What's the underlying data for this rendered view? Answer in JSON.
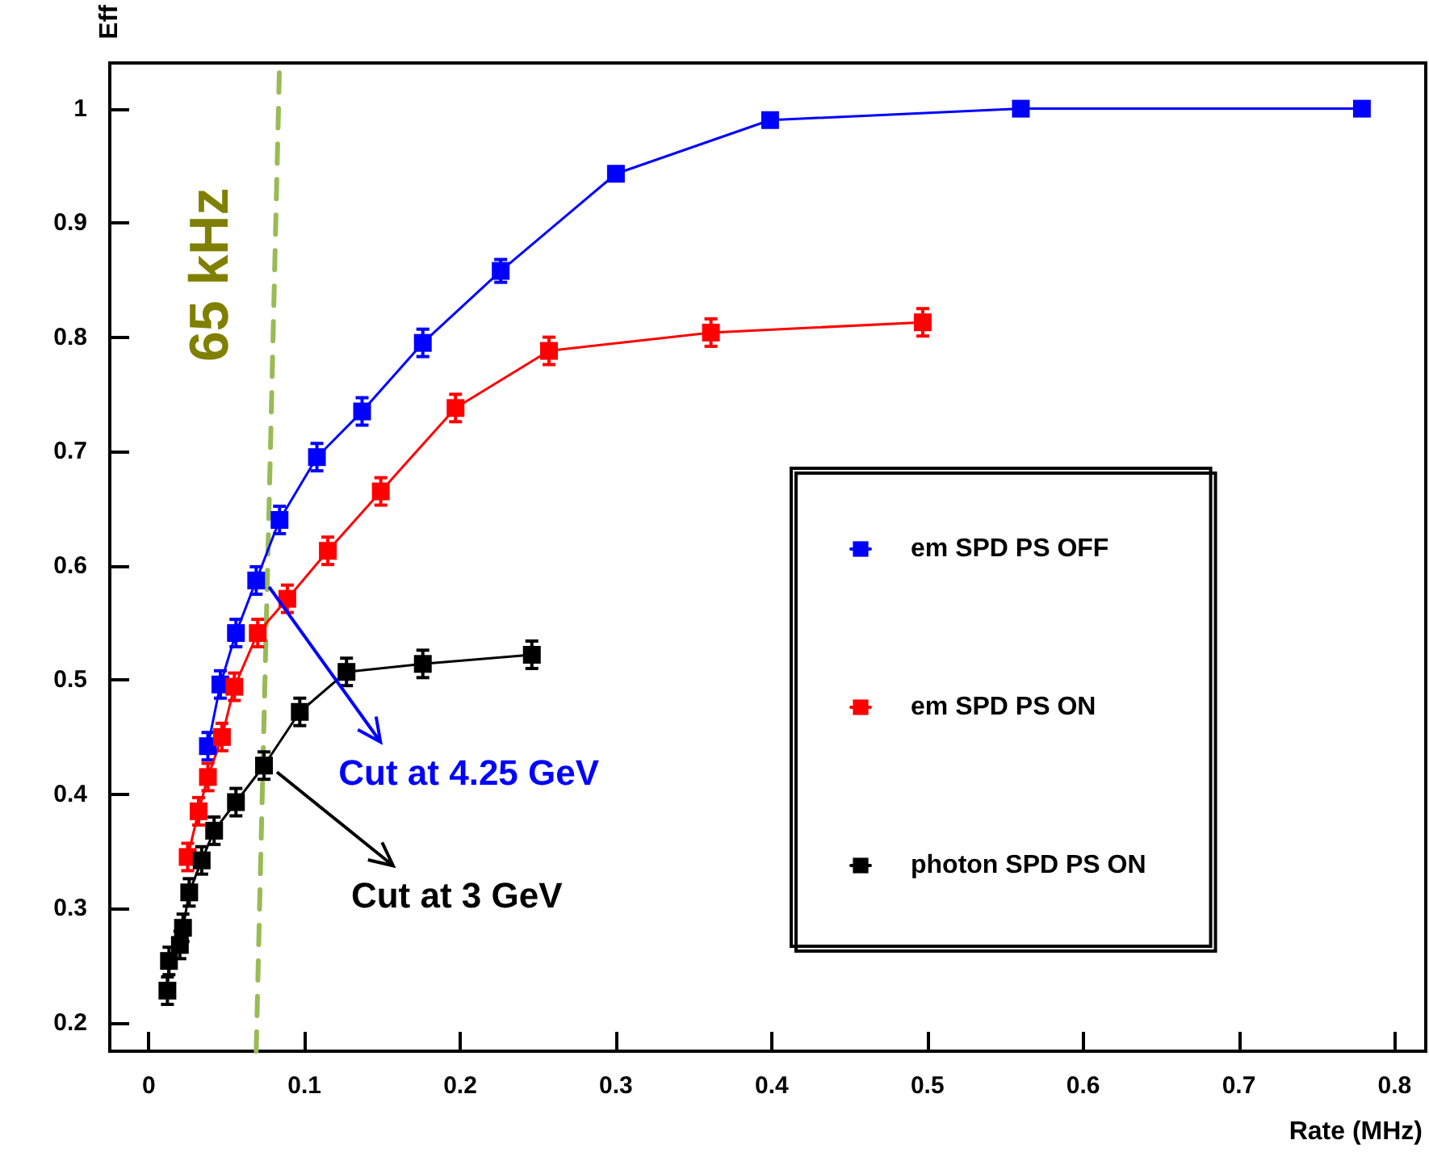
{
  "chart_data": {
    "type": "line",
    "xlabel": "Rate (MHz)",
    "ylabel": "Eff",
    "xlim": [
      -0.025,
      0.82
    ],
    "ylim": [
      0.175,
      1.04
    ],
    "xticks": [
      0,
      0.1,
      0.2,
      0.3,
      0.4,
      0.5,
      0.6,
      0.7,
      0.8
    ],
    "yticks": [
      0.2,
      0.3,
      0.4,
      0.5,
      0.6,
      0.7,
      0.8,
      0.9,
      1
    ],
    "grid": false,
    "legend": "right",
    "marker": "square",
    "series": [
      {
        "name": "em SPD PS OFF",
        "color": "#0000ff",
        "x": [
          0.038,
          0.046,
          0.056,
          0.069,
          0.084,
          0.108,
          0.137,
          0.176,
          0.226,
          0.3,
          0.399,
          0.56,
          0.779
        ],
        "values": [
          0.442,
          0.496,
          0.541,
          0.587,
          0.64,
          0.695,
          0.735,
          0.795,
          0.858,
          0.943,
          0.99,
          1.0,
          1.0
        ],
        "errors": [
          0.012,
          0.012,
          0.012,
          0.012,
          0.012,
          0.012,
          0.012,
          0.012,
          0.01,
          0.006,
          0.005,
          0.005,
          0.005
        ]
      },
      {
        "name": "em SPD PS ON",
        "color": "#ff0000",
        "x": [
          0.025,
          0.032,
          0.038,
          0.047,
          0.055,
          0.07,
          0.089,
          0.115,
          0.149,
          0.197,
          0.257,
          0.361,
          0.497
        ],
        "values": [
          0.345,
          0.385,
          0.415,
          0.45,
          0.494,
          0.541,
          0.571,
          0.613,
          0.665,
          0.738,
          0.788,
          0.804,
          0.813
        ],
        "errors": [
          0.012,
          0.012,
          0.012,
          0.012,
          0.012,
          0.012,
          0.012,
          0.012,
          0.012,
          0.012,
          0.012,
          0.012,
          0.012
        ]
      },
      {
        "name": "photon SPD PS ON",
        "color": "#000000",
        "x": [
          0.012,
          0.013,
          0.02,
          0.022,
          0.026,
          0.034,
          0.042,
          0.056,
          0.074,
          0.097,
          0.127,
          0.176,
          0.246
        ],
        "values": [
          0.228,
          0.254,
          0.268,
          0.283,
          0.314,
          0.342,
          0.368,
          0.393,
          0.425,
          0.472,
          0.507,
          0.514,
          0.522
        ],
        "errors": [
          0.012,
          0.012,
          0.012,
          0.012,
          0.012,
          0.012,
          0.012,
          0.012,
          0.012,
          0.012,
          0.012,
          0.012,
          0.012
        ]
      },
      {
        "color": "#99bb55",
        "marker": "none",
        "line_style": "dashed",
        "x": [
          0.069,
          0.084
        ],
        "values": [
          0.175,
          1.04
        ]
      }
    ],
    "annotations": [
      "65 kHz",
      {
        "text": "Cut at 4.25 GeV",
        "x": 0.069,
        "y": 0.587
      },
      {
        "text": "Cut at 3 GeV",
        "x": 0.074,
        "y": 0.425
      }
    ]
  }
}
